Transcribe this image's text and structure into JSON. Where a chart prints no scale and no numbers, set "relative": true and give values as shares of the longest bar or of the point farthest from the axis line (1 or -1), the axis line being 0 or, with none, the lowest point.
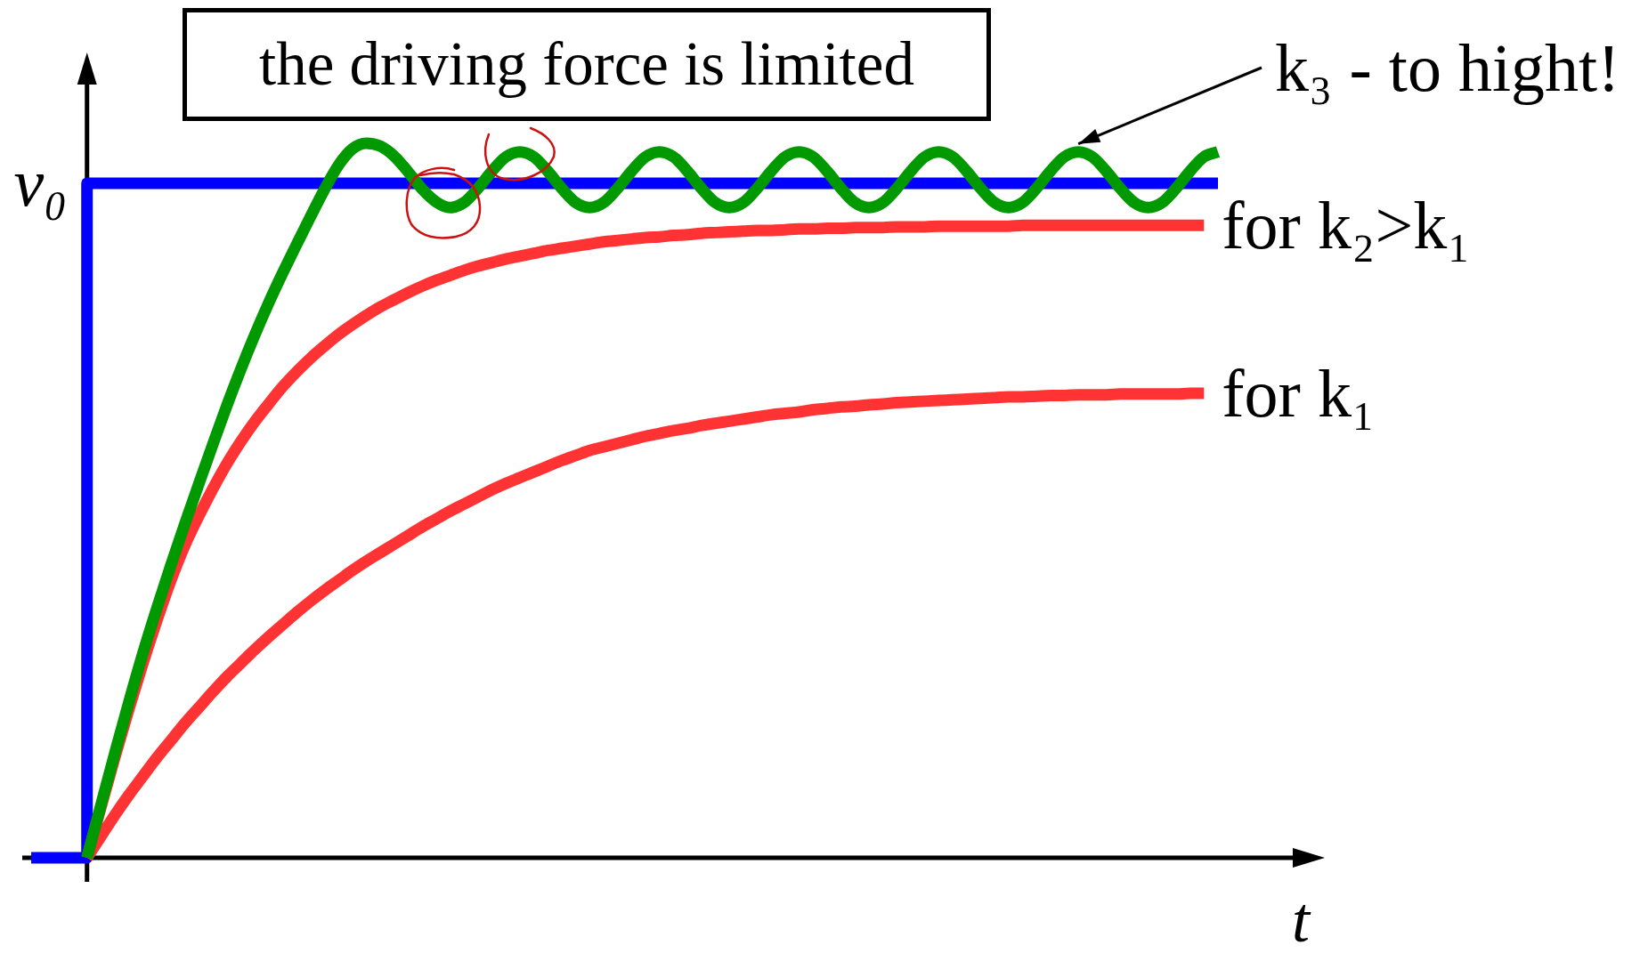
{
  "chart_data": {
    "type": "line",
    "title": "the driving force is limited",
    "xlabel": "t",
    "relative": true,
    "tick_labels": false,
    "categories": [
      null,
      null,
      null,
      null,
      null,
      null,
      null,
      null,
      null,
      null,
      null,
      null,
      null,
      null,
      null,
      null,
      null,
      null,
      null,
      null,
      null,
      null,
      null,
      null,
      null,
      null,
      null,
      null,
      null,
      null,
      null,
      null,
      null,
      null,
      null,
      null,
      null,
      null,
      null,
      null,
      null,
      null,
      null,
      null,
      null,
      null,
      null,
      null,
      null,
      null,
      null,
      null,
      null,
      null,
      null,
      null,
      null,
      null,
      null,
      null,
      null,
      null,
      null,
      null,
      null,
      null,
      null,
      null,
      null,
      null,
      null,
      null,
      null,
      null,
      null,
      null,
      null,
      null,
      null,
      null,
      null,
      null,
      null,
      null,
      null,
      null
    ],
    "series": [
      {
        "name": "v₀",
        "type": "step",
        "color": "#0000ff",
        "values": [
          0,
          0,
          0,
          0,
          0.944,
          0.944,
          0.944,
          0.944,
          0.944,
          0.944,
          0.944,
          0.944,
          0.944,
          0.944,
          0.944,
          0.944,
          0.944,
          0.944,
          0.944,
          0.944,
          0.944,
          0.944,
          0.944,
          0.944,
          0.944,
          0.944,
          0.944,
          0.944,
          0.944,
          0.944,
          0.944,
          0.944,
          0.944,
          0.944,
          0.944,
          0.944,
          0.944,
          0.944,
          0.944,
          0.944,
          0.944,
          0.944,
          0.944,
          0.944,
          0.944,
          0.944,
          0.944,
          0.944,
          0.944,
          0.944,
          0.944,
          0.944,
          0.944,
          0.944,
          0.944,
          0.944,
          0.944,
          0.944,
          0.944,
          0.944,
          0.944,
          0.944,
          0.944,
          0.944,
          0.944,
          0.944,
          0.944,
          0.944,
          0.944,
          0.944,
          0.944,
          0.944,
          0.944,
          0.944,
          0.944,
          0.944,
          0.944,
          0.944,
          0.944,
          0.944,
          0.944,
          0.944,
          0.944,
          0.944,
          0.944,
          0.944
        ]
      },
      {
        "name": "for k₁",
        "color": "#ff3333",
        "values": [
          null,
          null,
          null,
          null,
          0,
          0.03,
          0.06,
          0.088,
          0.114,
          0.14,
          0.164,
          0.188,
          0.21,
          0.232,
          0.253,
          0.272,
          0.291,
          0.309,
          0.326,
          0.343,
          0.359,
          0.374,
          0.388,
          0.402,
          0.415,
          0.427,
          0.439,
          0.451,
          0.463,
          0.474,
          0.485,
          0.495,
          0.505,
          0.515,
          0.524,
          0.532,
          0.54,
          0.548,
          0.556,
          0.563,
          0.57,
          0.575,
          0.58,
          0.585,
          0.59,
          0.594,
          0.598,
          0.601,
          0.605,
          0.608,
          0.611,
          0.614,
          0.617,
          0.62,
          0.622,
          0.624,
          0.627,
          0.629,
          0.631,
          0.632,
          0.634,
          0.635,
          0.637,
          0.638,
          0.639,
          0.64,
          0.641,
          0.642,
          0.643,
          0.644,
          0.645,
          0.645,
          0.646,
          0.647,
          0.647,
          0.648,
          0.648,
          0.648,
          0.649,
          0.649,
          0.649,
          0.649,
          0.649,
          0.65,
          0.65,
          null
        ]
      },
      {
        "name": "for k₂>k₁",
        "color": "#ff3333",
        "values": [
          null,
          null,
          null,
          null,
          0,
          0.071,
          0.141,
          0.208,
          0.272,
          0.332,
          0.388,
          0.437,
          0.478,
          0.516,
          0.551,
          0.582,
          0.61,
          0.635,
          0.659,
          0.68,
          0.699,
          0.716,
          0.732,
          0.746,
          0.759,
          0.771,
          0.781,
          0.791,
          0.8,
          0.808,
          0.815,
          0.822,
          0.828,
          0.833,
          0.838,
          0.842,
          0.846,
          0.85,
          0.853,
          0.856,
          0.859,
          0.862,
          0.864,
          0.866,
          0.868,
          0.869,
          0.871,
          0.872,
          0.874,
          0.875,
          0.876,
          0.877,
          0.878,
          0.878,
          0.879,
          0.88,
          0.88,
          0.881,
          0.881,
          0.882,
          0.882,
          0.882,
          0.883,
          0.883,
          0.883,
          0.884,
          0.884,
          0.884,
          0.884,
          0.884,
          0.884,
          0.885,
          0.885,
          0.885,
          0.885,
          0.885,
          0.885,
          0.885,
          0.885,
          0.885,
          0.885,
          0.885,
          0.885,
          0.885,
          0.885,
          null
        ]
      },
      {
        "name": "k₃ - to hight!",
        "color": "#009900",
        "values": [
          null,
          null,
          null,
          null,
          0,
          0.074,
          0.147,
          0.218,
          0.286,
          0.349,
          0.409,
          0.467,
          0.523,
          0.578,
          0.632,
          0.683,
          0.731,
          0.776,
          0.818,
          0.858,
          0.897,
          0.935,
          0.969,
          0.992,
          1,
          0.996,
          0.982,
          0.96,
          0.936,
          0.918,
          0.91,
          0.917,
          0.937,
          0.961,
          0.981,
          0.988,
          0.981,
          0.961,
          0.937,
          0.917,
          0.91,
          0.917,
          0.937,
          0.961,
          0.981,
          0.988,
          0.981,
          0.961,
          0.937,
          0.917,
          0.91,
          0.917,
          0.937,
          0.961,
          0.981,
          0.988,
          0.981,
          0.961,
          0.937,
          0.917,
          0.91,
          0.917,
          0.937,
          0.961,
          0.981,
          0.988,
          0.981,
          0.961,
          0.937,
          0.917,
          0.91,
          0.917,
          0.937,
          0.961,
          0.981,
          0.988,
          0.981,
          0.961,
          0.937,
          0.917,
          0.91,
          0.917,
          0.937,
          0.961,
          0.981,
          0.988
        ]
      }
    ]
  }
}
